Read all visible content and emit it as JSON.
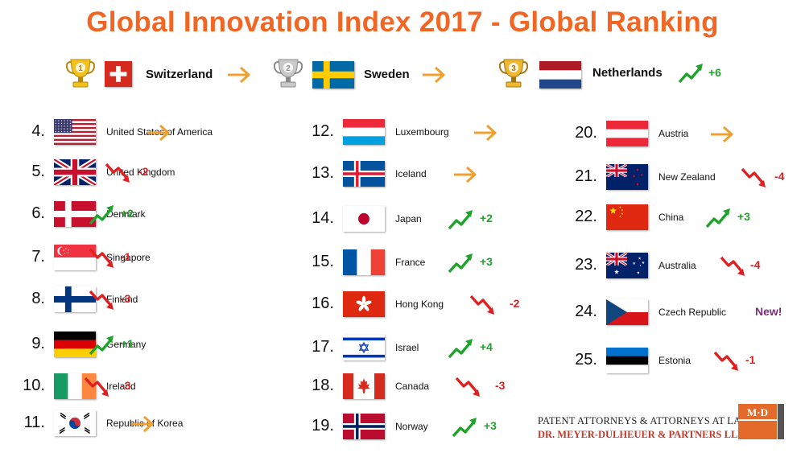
{
  "title": "Global Innovation Index 2017 - Global Ranking",
  "colors": {
    "title": "#f26522",
    "up": "#1fa32a",
    "down": "#e02020",
    "same": "#f0a030",
    "new": "#7b2f7b"
  },
  "top3": [
    {
      "place": "1",
      "name": "Switzerland",
      "trend": "same",
      "delta": "",
      "flag": "switzerland-flag"
    },
    {
      "place": "2",
      "name": "Sweden",
      "trend": "same",
      "delta": "",
      "flag": "sweden-flag"
    },
    {
      "place": "3",
      "name": "Netherlands",
      "trend": "up",
      "delta": "+6",
      "flag": "netherlands-flag"
    }
  ],
  "columns": [
    [
      {
        "rank": "4.",
        "name": "United States of America",
        "trend": "same",
        "delta": "",
        "flag": "usa"
      },
      {
        "rank": "5.",
        "name": "United Kingdom",
        "trend": "down",
        "delta": "-2",
        "flag": "uk"
      },
      {
        "rank": "6.",
        "name": "Denmark",
        "trend": "up",
        "delta": "+2",
        "flag": "denmark"
      },
      {
        "rank": "7.",
        "name": "Singapore",
        "trend": "down",
        "delta": "-1",
        "flag": "singapore"
      },
      {
        "rank": "8.",
        "name": "Finland",
        "trend": "down",
        "delta": "-3",
        "flag": "finland"
      },
      {
        "rank": "9.",
        "name": "Germany",
        "trend": "up",
        "delta": "+1",
        "flag": "germany"
      },
      {
        "rank": "10.",
        "name": "Ireland",
        "trend": "down",
        "delta": "-3",
        "flag": "ireland"
      },
      {
        "rank": "11.",
        "name": "Republic of Korea",
        "trend": "same",
        "delta": "",
        "flag": "korea"
      }
    ],
    [
      {
        "rank": "12.",
        "name": "Luxembourg",
        "trend": "same",
        "delta": "",
        "flag": "luxembourg"
      },
      {
        "rank": "13.",
        "name": "Iceland",
        "trend": "same",
        "delta": "",
        "flag": "iceland"
      },
      {
        "rank": "14.",
        "name": "Japan",
        "trend": "up",
        "delta": "+2",
        "flag": "japan"
      },
      {
        "rank": "15.",
        "name": "France",
        "trend": "up",
        "delta": "+3",
        "flag": "france"
      },
      {
        "rank": "16.",
        "name": "Hong Kong",
        "trend": "down",
        "delta": "-2",
        "flag": "hongkong"
      },
      {
        "rank": "17.",
        "name": "Israel",
        "trend": "up",
        "delta": "+4",
        "flag": "israel"
      },
      {
        "rank": "18.",
        "name": "Canada",
        "trend": "down",
        "delta": "-3",
        "flag": "canada"
      },
      {
        "rank": "19.",
        "name": "Norway",
        "trend": "up",
        "delta": "+3",
        "flag": "norway"
      }
    ],
    [
      {
        "rank": "20.",
        "name": "Austria",
        "trend": "same",
        "delta": "",
        "flag": "austria"
      },
      {
        "rank": "21.",
        "name": "New Zealand",
        "trend": "down",
        "delta": "-4",
        "flag": "newzealand"
      },
      {
        "rank": "22.",
        "name": "China",
        "trend": "up",
        "delta": "+3",
        "flag": "china"
      },
      {
        "rank": "23.",
        "name": "Australia",
        "trend": "down",
        "delta": "-4",
        "flag": "australia"
      },
      {
        "rank": "24.",
        "name": "Czech Republic",
        "trend": "new",
        "delta": "New!",
        "flag": "czech"
      },
      {
        "rank": "25.",
        "name": "Estonia",
        "trend": "down",
        "delta": "-1",
        "flag": "estonia"
      }
    ]
  ],
  "footer": {
    "line1": "PATENT ATTORNEYS & ATTORNEYS AT LAW",
    "line2": "DR. MEYER-DULHEUER & PARTNERS LLP",
    "logo_text": "M·D"
  }
}
